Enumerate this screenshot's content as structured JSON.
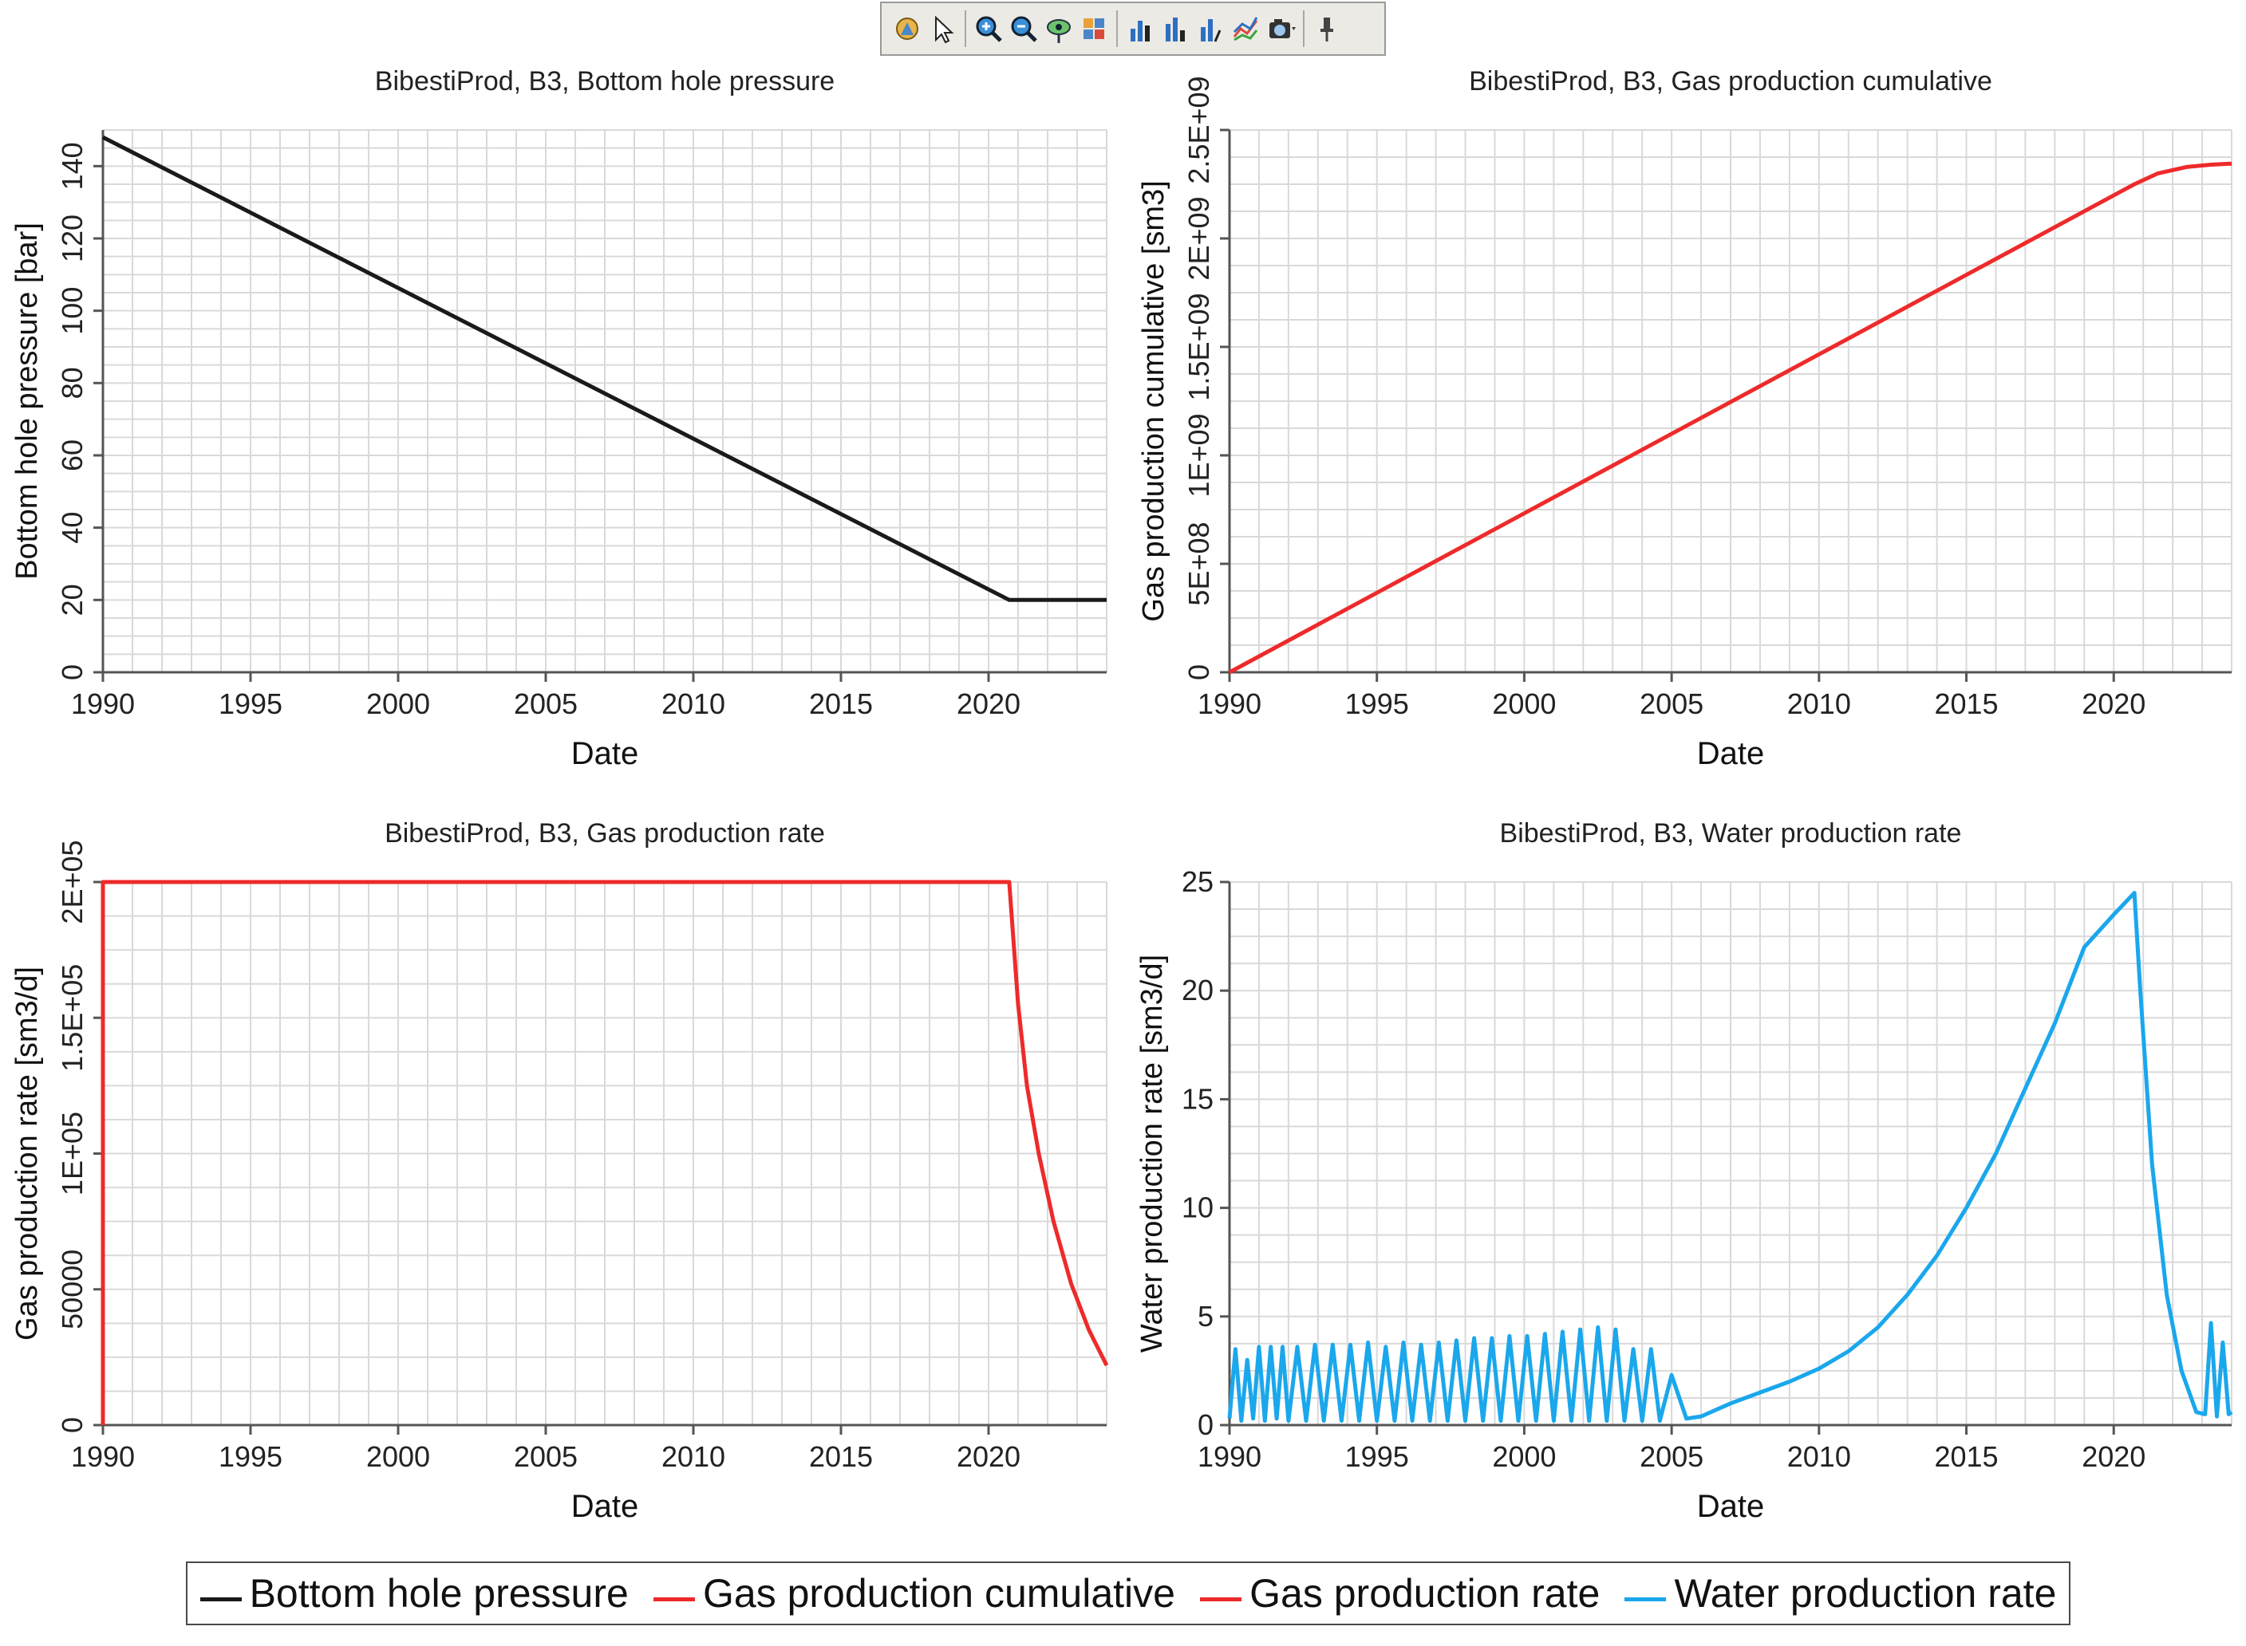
{
  "toolbar": {
    "tools": [
      {
        "name": "pan-tool-icon",
        "icon": "hand"
      },
      {
        "name": "select-pointer-icon",
        "icon": "pointer"
      },
      {
        "name": "zoom-in-icon",
        "icon": "zoom-in"
      },
      {
        "name": "zoom-out-icon",
        "icon": "zoom-out"
      },
      {
        "name": "view-eye-icon",
        "icon": "eye"
      },
      {
        "name": "chart-settings-icon",
        "icon": "settings"
      },
      {
        "name": "bar-chart-icon",
        "icon": "bar"
      },
      {
        "name": "bar-chart-alt-icon",
        "icon": "bar-alt"
      },
      {
        "name": "bar-chart-trend-icon",
        "icon": "bar-trend"
      },
      {
        "name": "line-chart-icon",
        "icon": "line"
      },
      {
        "name": "camera-icon",
        "icon": "camera"
      },
      {
        "name": "pin-icon",
        "icon": "pin"
      }
    ]
  },
  "colors": {
    "black_series": "#1a1a1a",
    "red_series": "#ee2a2a",
    "blue_series": "#1aa7ec",
    "grid": "#d9d9d9",
    "axis": "#555555"
  },
  "chart_data": [
    {
      "id": "bhp",
      "type": "line",
      "title": "BibestiProd, B3, Bottom hole pressure",
      "xlabel": "Date",
      "ylabel": "Bottom hole pressure [bar]",
      "xlim": [
        1990,
        2024
      ],
      "ylim": [
        0,
        150
      ],
      "xticks": [
        1990,
        1995,
        2000,
        2005,
        2010,
        2015,
        2020
      ],
      "xtick_labels": [
        "1990",
        "1995",
        "2000",
        "2005",
        "2010",
        "2015",
        "2020"
      ],
      "yticks": [
        0,
        20,
        40,
        60,
        80,
        100,
        120,
        140
      ],
      "ytick_labels": [
        "0",
        "20",
        "40",
        "60",
        "80",
        "100",
        "120",
        "140"
      ],
      "ytick_rotate": true,
      "color": "#1a1a1a",
      "series": [
        {
          "name": "Bottom hole pressure",
          "x": [
            1990,
            2020.7,
            2024
          ],
          "y": [
            148,
            20,
            20
          ]
        }
      ]
    },
    {
      "id": "gascum",
      "type": "line",
      "title": "BibestiProd, B3, Gas production cumulative",
      "xlabel": "Date",
      "ylabel": "Gas production cumulative [sm3]",
      "xlim": [
        1990,
        2024
      ],
      "ylim": [
        0,
        2500000000
      ],
      "xticks": [
        1990,
        1995,
        2000,
        2005,
        2010,
        2015,
        2020
      ],
      "xtick_labels": [
        "1990",
        "1995",
        "2000",
        "2005",
        "2010",
        "2015",
        "2020"
      ],
      "yticks": [
        0,
        500000000,
        1000000000,
        1500000000,
        2000000000,
        2500000000
      ],
      "ytick_labels": [
        "0",
        "5E+08",
        "1E+09",
        "1.5E+09",
        "2E+09",
        "2.5E+09"
      ],
      "ytick_rotate": true,
      "color": "#ee2a2a",
      "series": [
        {
          "name": "Gas production cumulative",
          "x": [
            1990,
            2020.7,
            2021.5,
            2022.5,
            2023.3,
            2024
          ],
          "y": [
            0,
            2250000000,
            2300000000,
            2330000000,
            2340000000,
            2345000000
          ]
        }
      ]
    },
    {
      "id": "gasrate",
      "type": "line",
      "title": "BibestiProd, B3, Gas production rate",
      "xlabel": "Date",
      "ylabel": "Gas production rate [sm3/d]",
      "xlim": [
        1990,
        2024
      ],
      "ylim": [
        0,
        200000
      ],
      "xticks": [
        1990,
        1995,
        2000,
        2005,
        2010,
        2015,
        2020
      ],
      "xtick_labels": [
        "1990",
        "1995",
        "2000",
        "2005",
        "2010",
        "2015",
        "2020"
      ],
      "yticks": [
        0,
        50000,
        100000,
        150000,
        200000
      ],
      "ytick_labels": [
        "0",
        "50000",
        "1E+05",
        "1.5E+05",
        "2E+05"
      ],
      "ytick_rotate": true,
      "color": "#ee2a2a",
      "series": [
        {
          "name": "Gas production rate",
          "x": [
            1990,
            1990,
            2020.7,
            2020.8,
            2021.0,
            2021.3,
            2021.7,
            2022.2,
            2022.8,
            2023.4,
            2024
          ],
          "y": [
            0,
            200000,
            200000,
            185000,
            155000,
            125000,
            100000,
            75000,
            52000,
            35000,
            22000
          ]
        }
      ]
    },
    {
      "id": "waterrate",
      "type": "line",
      "title": "BibestiProd, B3, Water production rate",
      "xlabel": "Date",
      "ylabel": "Water production rate [sm3/d]",
      "xlim": [
        1990,
        2024
      ],
      "ylim": [
        0,
        25
      ],
      "xticks": [
        1990,
        1995,
        2000,
        2005,
        2010,
        2015,
        2020
      ],
      "xtick_labels": [
        "1990",
        "1995",
        "2000",
        "2005",
        "2010",
        "2015",
        "2020"
      ],
      "yticks": [
        0,
        5,
        10,
        15,
        20,
        25
      ],
      "ytick_labels": [
        "0",
        "5",
        "10",
        "15",
        "20",
        "25"
      ],
      "ytick_rotate": false,
      "color": "#1aa7ec",
      "series": [
        {
          "name": "Water production rate",
          "x": [
            1990.0,
            1990.2,
            1990.4,
            1990.6,
            1990.8,
            1991.0,
            1991.2,
            1991.4,
            1991.6,
            1991.8,
            1992.0,
            1992.3,
            1992.6,
            1992.9,
            1993.2,
            1993.5,
            1993.8,
            1994.1,
            1994.4,
            1994.7,
            1995.0,
            1995.3,
            1995.6,
            1995.9,
            1996.2,
            1996.5,
            1996.8,
            1997.1,
            1997.4,
            1997.7,
            1998.0,
            1998.3,
            1998.6,
            1998.9,
            1999.2,
            1999.5,
            1999.8,
            2000.1,
            2000.4,
            2000.7,
            2001.0,
            2001.3,
            2001.6,
            2001.9,
            2002.2,
            2002.5,
            2002.8,
            2003.1,
            2003.4,
            2003.7,
            2004.0,
            2004.3,
            2004.6,
            2005.0,
            2005.5,
            2006.0,
            2007,
            2008,
            2009,
            2010,
            2011,
            2012,
            2013,
            2014,
            2015,
            2016,
            2017,
            2018,
            2019,
            2020,
            2020.7,
            2020.9,
            2021.3,
            2021.8,
            2022.3,
            2022.8,
            2023.1,
            2023.3,
            2023.5,
            2023.7,
            2023.9,
            2024
          ],
          "y": [
            0.3,
            3.5,
            0.2,
            3.0,
            0.3,
            3.6,
            0.2,
            3.6,
            0.3,
            3.6,
            0.2,
            3.6,
            0.2,
            3.7,
            0.2,
            3.7,
            0.2,
            3.7,
            0.2,
            3.8,
            0.2,
            3.6,
            0.2,
            3.8,
            0.2,
            3.7,
            0.2,
            3.8,
            0.2,
            3.9,
            0.2,
            4.0,
            0.2,
            4.0,
            0.2,
            4.1,
            0.2,
            4.1,
            0.2,
            4.2,
            0.2,
            4.3,
            0.2,
            4.4,
            0.2,
            4.5,
            0.2,
            4.4,
            0.2,
            3.5,
            0.2,
            3.5,
            0.2,
            2.3,
            0.3,
            0.4,
            1.0,
            1.5,
            2.0,
            2.6,
            3.4,
            4.5,
            6.0,
            7.8,
            10.0,
            12.5,
            15.5,
            18.5,
            22.0,
            23.5,
            24.5,
            20.0,
            12.0,
            6.0,
            2.5,
            0.6,
            0.5,
            4.7,
            0.4,
            3.8,
            0.5,
            0.6
          ]
        }
      ]
    }
  ],
  "legend": {
    "items": [
      {
        "label": "Bottom hole pressure",
        "color": "#1a1a1a"
      },
      {
        "label": "Gas production cumulative",
        "color": "#ee2a2a"
      },
      {
        "label": "Gas production rate",
        "color": "#ee2a2a"
      },
      {
        "label": "Water production rate",
        "color": "#1aa7ec"
      }
    ]
  }
}
